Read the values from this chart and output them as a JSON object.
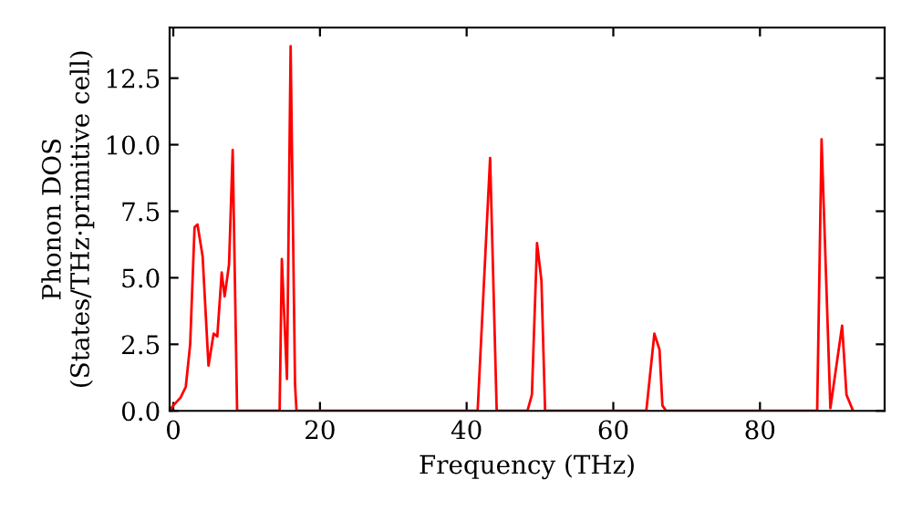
{
  "chart_data": {
    "type": "line",
    "xlabel": "Frequency (THz)",
    "ylabel": "Phonon DOS\n(States/THz·primitive cell)",
    "xlim": [
      -0.5,
      97
    ],
    "ylim": [
      0,
      14.4
    ],
    "xticks": [
      0,
      20,
      40,
      60,
      80
    ],
    "yticks": [
      {
        "value": 0,
        "label": "0.0"
      },
      2.5,
      {
        "value": 5,
        "label": "5.0"
      },
      7.5,
      {
        "value": 10,
        "label": "10.0"
      },
      12.5
    ],
    "grid": false,
    "legend": false,
    "marker": "none",
    "line_style": "solid",
    "series": [
      {
        "color": "#ff0000",
        "x": [
          -0.5,
          0,
          1,
          1.7,
          2.3,
          2.9,
          3.3,
          4.0,
          4.8,
          5.5,
          6.0,
          6.6,
          7.0,
          7.6,
          8.1,
          8.7,
          14.5,
          14.8,
          15.5,
          16.0,
          16.6,
          16.8,
          41.5,
          43.2,
          44.1,
          48.3,
          48.9,
          49.6,
          50.2,
          50.7,
          64.5,
          65.6,
          66.3,
          66.7,
          67.2,
          87.8,
          88.4,
          89.6,
          91.2,
          91.8,
          92.7
        ],
        "values": [
          0,
          0.2,
          0.5,
          0.9,
          2.5,
          6.9,
          7.0,
          5.8,
          1.7,
          2.9,
          2.8,
          5.2,
          4.3,
          5.5,
          9.8,
          0,
          0,
          5.7,
          1.2,
          13.7,
          1.0,
          0,
          0,
          9.5,
          0,
          0,
          0.6,
          6.3,
          4.9,
          0,
          0,
          2.9,
          2.3,
          0.2,
          0,
          0,
          10.2,
          0.1,
          3.2,
          0.6,
          0
        ]
      }
    ]
  }
}
